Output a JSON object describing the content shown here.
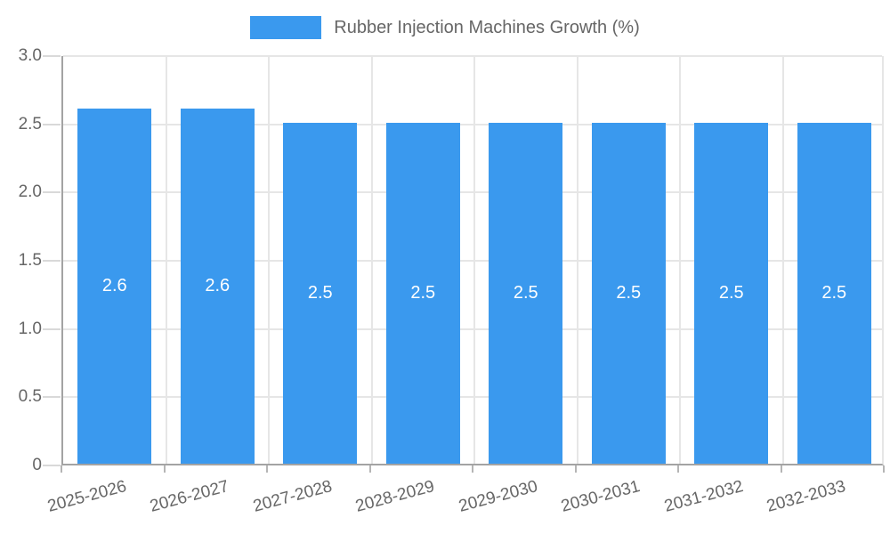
{
  "legend": {
    "label": "Rubber Injection Machines Growth (%)"
  },
  "colors": {
    "bar": "#3a99ee",
    "grid": "#e6e6e6",
    "axis": "#a3a3a3",
    "text": "#666666",
    "bar_label_text": "#ffffff"
  },
  "chart_data": {
    "type": "bar",
    "title": "Rubber Injection Machines Growth (%)",
    "categories": [
      "2025-2026",
      "2026-2027",
      "2027-2028",
      "2028-2029",
      "2029-2030",
      "2030-2031",
      "2031-2032",
      "2032-2033"
    ],
    "values": [
      2.6,
      2.6,
      2.5,
      2.5,
      2.5,
      2.5,
      2.5,
      2.5
    ],
    "bar_labels": [
      "2.6",
      "2.6",
      "2.5",
      "2.5",
      "2.5",
      "2.5",
      "2.5",
      "2.5"
    ],
    "xlabel": "",
    "ylabel": "",
    "ylim": [
      0,
      3
    ],
    "yticks": [
      3.0,
      2.5,
      2.0,
      1.5,
      1.0,
      0.5,
      0
    ],
    "ytick_labels": [
      "3.0",
      "2.5",
      "2.0",
      "1.5",
      "1.0",
      "0.5",
      "0"
    ],
    "grid": true,
    "legend_position": "top-center"
  }
}
